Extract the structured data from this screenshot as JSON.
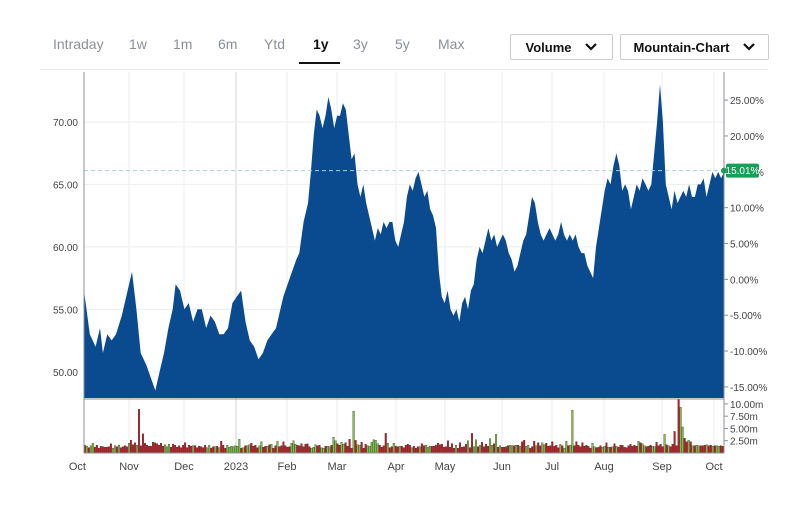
{
  "toolbar": {
    "tabs": [
      {
        "label": "Intraday"
      },
      {
        "label": "1w"
      },
      {
        "label": "1m"
      },
      {
        "label": "6m"
      },
      {
        "label": "Ytd"
      },
      {
        "label": "1y"
      },
      {
        "label": "3y"
      },
      {
        "label": "5y"
      },
      {
        "label": "Max"
      }
    ],
    "active_tab": "1y",
    "volume_dropdown": {
      "label": "Volume",
      "icon": "chevron-down-icon"
    },
    "charttype_dropdown": {
      "label": "Mountain-Chart",
      "icon": "chevron-down-icon"
    }
  },
  "colors": {
    "area_fill": "#0a4a8f",
    "volume_up": "#7ec13f",
    "volume_down": "#c8161d",
    "badge": "#1a9e57",
    "reference_line": "#a9cfd8"
  },
  "chart_data": {
    "type": "area",
    "x_labels": [
      "Oct",
      "Nov",
      "Dec",
      "2023",
      "Feb",
      "Mar",
      "Apr",
      "May",
      "Jun",
      "Jul",
      "Aug",
      "Sep",
      "Oct"
    ],
    "price_axis": {
      "ticks": [
        "50.00",
        "55.00",
        "60.00",
        "65.00",
        "70.00"
      ],
      "ylim": [
        47.9,
        74
      ]
    },
    "percent_axis": {
      "ticks": [
        "-15.00%",
        "-10.00%",
        "-5.00%",
        "0.00%",
        "5.00%",
        "10.00%",
        "15.00%",
        "20.00%",
        "25.00%"
      ]
    },
    "volume_axis": {
      "ticks": [
        "2.50m",
        "5.00m",
        "7.50m",
        "10.00m"
      ],
      "ylim": [
        0,
        11
      ]
    },
    "reference_price": 66.1,
    "current_change_label": "15.01%",
    "price_series": [
      [
        0,
        56.5
      ],
      [
        4,
        53
      ],
      [
        8,
        52
      ],
      [
        11,
        53.5
      ],
      [
        13,
        51.5
      ],
      [
        16,
        53
      ],
      [
        19,
        52.5
      ],
      [
        22,
        53
      ],
      [
        26,
        54.5
      ],
      [
        30,
        56.5
      ],
      [
        33,
        58
      ],
      [
        36,
        55
      ],
      [
        39,
        51.5
      ],
      [
        43,
        50.5
      ],
      [
        46,
        49.5
      ],
      [
        49,
        48.5
      ],
      [
        52,
        50
      ],
      [
        55,
        51.5
      ],
      [
        58,
        53.5
      ],
      [
        61,
        55
      ],
      [
        63,
        57
      ],
      [
        66,
        56.5
      ],
      [
        69,
        55
      ],
      [
        72,
        55.5
      ],
      [
        75,
        54
      ],
      [
        78,
        55
      ],
      [
        81,
        55
      ],
      [
        84,
        53.5
      ],
      [
        87,
        54.5
      ],
      [
        90,
        54
      ],
      [
        93,
        53
      ],
      [
        96,
        53
      ],
      [
        99,
        53.5
      ],
      [
        102,
        55.5
      ],
      [
        105,
        56
      ],
      [
        108,
        56.5
      ],
      [
        111,
        54
      ],
      [
        114,
        52.5
      ],
      [
        117,
        52
      ],
      [
        120,
        51
      ],
      [
        123,
        51.5
      ],
      [
        126,
        52.5
      ],
      [
        129,
        53
      ],
      [
        132,
        53.5
      ],
      [
        135,
        55
      ],
      [
        137,
        56
      ],
      [
        140,
        57
      ],
      [
        143,
        58
      ],
      [
        146,
        59
      ],
      [
        148,
        59.5
      ],
      [
        151,
        62
      ],
      [
        154,
        63.5
      ],
      [
        156,
        66
      ],
      [
        158,
        69
      ],
      [
        160,
        71
      ],
      [
        162,
        70.5
      ],
      [
        164,
        69.5
      ],
      [
        166,
        70.5
      ],
      [
        168,
        72
      ],
      [
        170,
        71
      ],
      [
        172,
        69.5
      ],
      [
        174,
        70.5
      ],
      [
        176,
        70.5
      ],
      [
        178,
        71.5
      ],
      [
        180,
        71
      ],
      [
        182,
        69
      ],
      [
        184,
        67
      ],
      [
        186,
        67.5
      ],
      [
        188,
        65
      ],
      [
        190,
        64
      ],
      [
        192,
        65
      ],
      [
        194,
        63.5
      ],
      [
        196,
        62.5
      ],
      [
        198,
        61.5
      ],
      [
        200,
        60.5
      ],
      [
        202,
        61.5
      ],
      [
        204,
        61
      ],
      [
        206,
        62
      ],
      [
        208,
        61.5
      ],
      [
        210,
        62
      ],
      [
        212,
        62
      ],
      [
        214,
        60.5
      ],
      [
        216,
        60
      ],
      [
        218,
        61
      ],
      [
        220,
        62
      ],
      [
        222,
        64
      ],
      [
        224,
        65
      ],
      [
        226,
        64.5
      ],
      [
        228,
        65.5
      ],
      [
        230,
        66
      ],
      [
        232,
        65
      ],
      [
        234,
        64
      ],
      [
        236,
        64.5
      ],
      [
        238,
        63
      ],
      [
        240,
        62.5
      ],
      [
        242,
        61.5
      ],
      [
        244,
        58
      ],
      [
        246,
        56
      ],
      [
        248,
        55.5
      ],
      [
        250,
        56.5
      ],
      [
        252,
        55
      ],
      [
        254,
        54.5
      ],
      [
        256,
        55
      ],
      [
        258,
        54
      ],
      [
        260,
        55.5
      ],
      [
        262,
        56
      ],
      [
        264,
        55
      ],
      [
        266,
        56.5
      ],
      [
        268,
        57
      ],
      [
        270,
        59
      ],
      [
        272,
        60
      ],
      [
        274,
        59.5
      ],
      [
        276,
        60.5
      ],
      [
        278,
        61.5
      ],
      [
        280,
        60.5
      ],
      [
        282,
        61
      ],
      [
        284,
        60
      ],
      [
        286,
        60.5
      ],
      [
        288,
        61
      ],
      [
        290,
        60.5
      ],
      [
        292,
        59.5
      ],
      [
        294,
        59
      ],
      [
        296,
        58
      ],
      [
        298,
        58.5
      ],
      [
        300,
        59.5
      ],
      [
        302,
        60.5
      ],
      [
        304,
        61
      ],
      [
        306,
        62.5
      ],
      [
        308,
        64
      ],
      [
        310,
        63.5
      ],
      [
        312,
        62
      ],
      [
        314,
        61
      ],
      [
        316,
        60.5
      ],
      [
        318,
        61
      ],
      [
        320,
        61.5
      ],
      [
        322,
        61
      ],
      [
        324,
        60.5
      ],
      [
        326,
        61
      ],
      [
        328,
        62
      ],
      [
        330,
        61
      ],
      [
        332,
        60.5
      ],
      [
        334,
        61
      ],
      [
        336,
        60.5
      ],
      [
        338,
        61
      ],
      [
        340,
        60
      ],
      [
        342,
        59.5
      ],
      [
        344,
        59.5
      ],
      [
        346,
        58.5
      ],
      [
        348,
        58
      ],
      [
        350,
        57.5
      ],
      [
        352,
        60
      ],
      [
        354,
        61.5
      ],
      [
        356,
        63
      ],
      [
        358,
        64.5
      ],
      [
        360,
        65.5
      ],
      [
        362,
        65
      ],
      [
        364,
        66.5
      ],
      [
        366,
        67.5
      ],
      [
        368,
        66.5
      ],
      [
        370,
        64.5
      ],
      [
        372,
        65
      ],
      [
        374,
        64.5
      ],
      [
        376,
        63
      ],
      [
        378,
        64
      ],
      [
        380,
        65
      ],
      [
        382,
        64.5
      ],
      [
        384,
        65.5
      ],
      [
        386,
        65
      ],
      [
        388,
        64.5
      ],
      [
        390,
        65
      ],
      [
        392,
        67.5
      ],
      [
        394,
        70
      ],
      [
        396,
        73
      ],
      [
        398,
        70
      ],
      [
        400,
        65
      ],
      [
        402,
        64
      ],
      [
        404,
        63
      ],
      [
        406,
        64.5
      ],
      [
        408,
        63.5
      ],
      [
        410,
        64
      ],
      [
        412,
        64.5
      ],
      [
        414,
        64
      ],
      [
        416,
        65
      ],
      [
        418,
        64
      ],
      [
        420,
        64
      ],
      [
        422,
        65
      ],
      [
        424,
        65
      ],
      [
        426,
        65.5
      ],
      [
        428,
        64
      ],
      [
        430,
        65
      ],
      [
        432,
        66
      ],
      [
        434,
        65.5
      ],
      [
        436,
        66
      ],
      [
        438,
        65.5
      ],
      [
        440,
        66
      ]
    ],
    "volume_series": [
      1.6,
      1.4,
      1.1,
      1.5,
      2.0,
      1.2,
      1.6,
      1.0,
      1.4,
      1.3,
      1.2,
      1.2,
      1.3,
      1.9,
      1.0,
      1.5,
      1.3,
      1.6,
      1.1,
      1.3,
      1.5,
      1.3,
      2.0,
      2.6,
      1.7,
      2.1,
      1.6,
      8.9,
      1.5,
      3.9,
      2.0,
      1.6,
      1.4,
      1.4,
      2.2,
      2.1,
      1.9,
      1.6,
      2.0,
      1.4,
      1.7,
      1.3,
      1.8,
      1.2,
      1.8,
      1.6,
      1.2,
      1.5,
      1.1,
      1.6,
      2.1,
      1.1,
      1.6,
      1.4,
      1.5,
      1.5,
      1.1,
      1.4,
      1.3,
      1.1,
      1.6,
      1.1,
      1.6,
      1.0,
      1.3,
      1.3,
      1.4,
      1.1,
      2.4,
      1.6,
      1.0,
      1.6,
      1.2,
      1.4,
      1.3,
      1.5,
      1.4,
      2.8,
      1.0,
      1.1,
      1.5,
      1.5,
      1.7,
      2.0,
      1.4,
      1.6,
      1.1,
      1.5,
      2.3,
      1.2,
      1.4,
      1.4,
      1.7,
      1.8,
      1.0,
      1.5,
      2.4,
      1.3,
      1.5,
      2.3,
      1.5,
      1.2,
      1.3,
      2.0,
      2.5,
      1.8,
      1.6,
      1.5,
      1.9,
      1.3,
      1.8,
      1.9,
      1.3,
      1.0,
      1.2,
      1.7,
      1.5,
      1.6,
      1.1,
      1.0,
      1.4,
      1.4,
      1.3,
      1.6,
      3.2,
      2.5,
      1.9,
      1.6,
      2.2,
      1.8,
      2.1,
      1.4,
      2.8,
      1.0,
      8.5,
      2.6,
      1.7,
      1.6,
      2.2,
      1.0,
      1.8,
      1.5,
      1.4,
      2.2,
      2.7,
      2.6,
      1.9,
      1.6,
      1.2,
      1.5,
      4.0,
      2.0,
      1.1,
      1.3,
      2.0,
      1.4,
      1.3,
      1.4,
      1.4,
      1.1,
      1.6,
      1.8,
      1.6,
      1.1,
      1.4,
      1.0,
      1.3,
      1.3,
      1.9,
      1.5,
      1.6,
      1.2,
      1.4,
      1.4,
      1.4,
      1.6,
      2.0,
      1.7,
      1.8,
      1.2,
      1.3,
      2.5,
      1.2,
      1.9,
      1.0,
      1.6,
      1.0,
      2.1,
      1.2,
      1.3,
      1.8,
      2.5,
      1.1,
      4.0,
      1.3,
      2.7,
      1.3,
      1.6,
      2.2,
      1.3,
      1.8,
      1.4,
      2.9,
      1.6,
      1.9,
      3.8,
      1.2,
      1.5,
      1.2,
      1.2,
      1.3,
      1.5,
      1.6,
      1.5,
      1.5,
      1.6,
      1.6,
      1.4,
      2.3,
      2.6,
      1.4,
      1.6,
      1.0,
      1.3,
      2.4,
      1.5,
      2.1,
      1.5,
      2.1,
      1.7,
      2.0,
      1.4,
      1.5,
      2.3,
      1.4,
      1.6,
      1.1,
      1.8,
      1.5,
      1.0,
      2.4,
      1.5,
      1.6,
      8.7,
      1.5,
      2.3,
      1.6,
      1.3,
      2.1,
      1.4,
      1.6,
      1.4,
      1.0,
      2.0,
      1.3,
      1.1,
      1.2,
      1.5,
      1.2,
      1.4,
      2.1,
      1.2,
      1.2,
      1.3,
      1.9,
      1.4,
      1.2,
      1.6,
      1.6,
      1.2,
      1.1,
      1.5,
      1.8,
      1.4,
      1.6,
      1.4,
      2.4,
      2.1,
      1.9,
      1.5,
      1.3,
      1.4,
      1.6,
      1.4,
      1.3,
      2.2,
      1.5,
      1.8,
      1.3,
      3.8,
      1.7,
      1.5,
      1.3,
      1.8,
      4.4,
      1.5,
      11.0,
      9.3,
      5.3,
      3.0,
      2.3,
      2.6,
      2.3,
      1.5,
      1.5,
      1.6,
      1.5,
      1.5,
      1.5,
      1.6,
      1.7,
      1.5,
      1.6,
      1.4,
      1.5,
      1.5,
      1.4,
      1.5,
      1.4
    ]
  }
}
